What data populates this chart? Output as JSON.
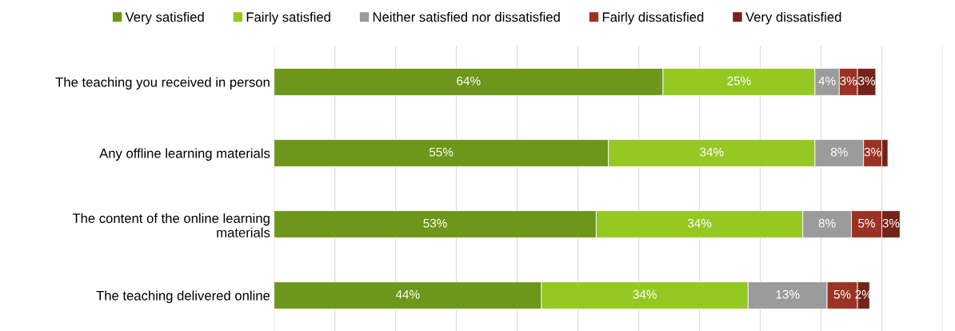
{
  "chart_data": {
    "type": "bar",
    "orientation": "horizontal",
    "stacked": true,
    "categories": [
      "The teaching you received in person",
      "Any offline learning materials",
      "The content of the online learning\nmaterials",
      "The teaching delivered online"
    ],
    "series": [
      {
        "name": "Very satisfied",
        "color": "#6e961a",
        "values": [
          64,
          55,
          53,
          44
        ],
        "value_labels": [
          "64%",
          "55%",
          "53%",
          "44%"
        ]
      },
      {
        "name": "Fairly satisfied",
        "color": "#96c823",
        "values": [
          25,
          34,
          34,
          34
        ],
        "value_labels": [
          "25%",
          "34%",
          "34%",
          "34%"
        ]
      },
      {
        "name": "Neither satisfied nor dissatisfied",
        "color": "#9b9b9b",
        "values": [
          4,
          8,
          8,
          13
        ],
        "value_labels": [
          "4%",
          "8%",
          "8%",
          "13%"
        ]
      },
      {
        "name": "Fairly dissatisfied",
        "color": "#9a3324",
        "values": [
          3,
          3,
          5,
          5
        ],
        "value_labels": [
          "3%",
          "3%",
          "5%",
          "5%"
        ]
      },
      {
        "name": "Very dissatisfied",
        "color": "#722419",
        "values": [
          3,
          1,
          3,
          2
        ],
        "value_labels": [
          "3%",
          null,
          "3%",
          "2%"
        ]
      }
    ],
    "xlim": [
      0,
      110
    ],
    "xticks": [
      {
        "value": 0,
        "label": null
      },
      {
        "value": 10,
        "label": null
      },
      {
        "value": 20,
        "label": null
      },
      {
        "value": 30,
        "label": null
      },
      {
        "value": 40,
        "label": null
      },
      {
        "value": 50,
        "label": null
      },
      {
        "value": 60,
        "label": null
      },
      {
        "value": 70,
        "label": null
      },
      {
        "value": 80,
        "label": null
      },
      {
        "value": 90,
        "label": null
      },
      {
        "value": 100,
        "label": null
      },
      {
        "value": 110,
        "label": null
      }
    ],
    "tick_labels": "y",
    "grid": "x",
    "legend": "top"
  }
}
